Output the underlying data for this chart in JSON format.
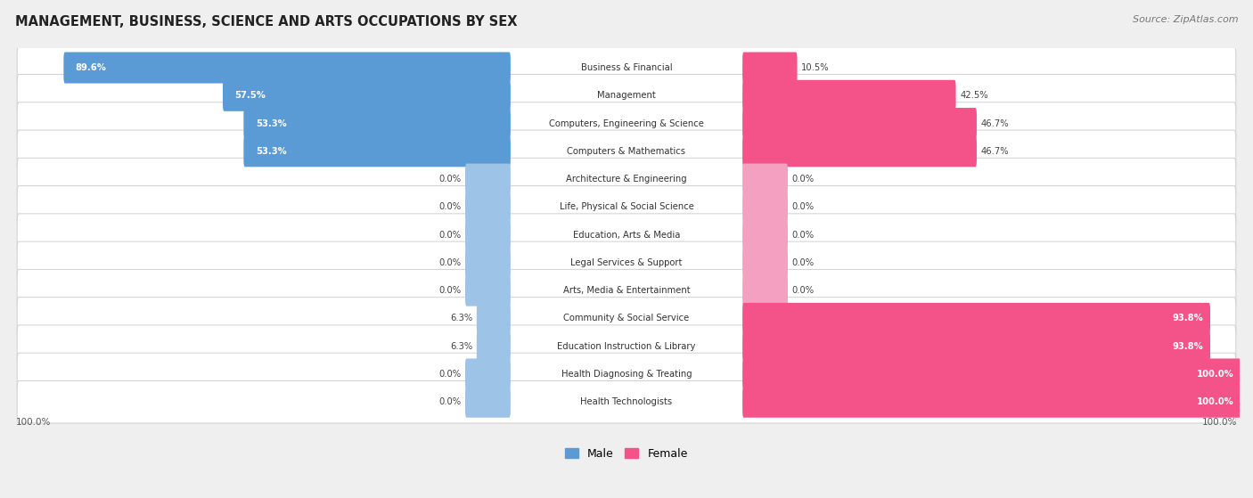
{
  "title": "MANAGEMENT, BUSINESS, SCIENCE AND ARTS OCCUPATIONS BY SEX",
  "source": "Source: ZipAtlas.com",
  "categories": [
    "Business & Financial",
    "Management",
    "Computers, Engineering & Science",
    "Computers & Mathematics",
    "Architecture & Engineering",
    "Life, Physical & Social Science",
    "Education, Arts & Media",
    "Legal Services & Support",
    "Arts, Media & Entertainment",
    "Community & Social Service",
    "Education Instruction & Library",
    "Health Diagnosing & Treating",
    "Health Technologists"
  ],
  "male_pct": [
    89.6,
    57.5,
    53.3,
    53.3,
    0.0,
    0.0,
    0.0,
    0.0,
    0.0,
    6.3,
    6.3,
    0.0,
    0.0
  ],
  "female_pct": [
    10.5,
    42.5,
    46.7,
    46.7,
    0.0,
    0.0,
    0.0,
    0.0,
    0.0,
    93.8,
    93.8,
    100.0,
    100.0
  ],
  "male_color_strong": "#5b9bd5",
  "male_color_light": "#9dc3e6",
  "female_color_strong": "#f4538a",
  "female_color_light": "#f4a0c0",
  "background_color": "#efefef",
  "legend_male": "Male",
  "legend_female": "Female",
  "bar_height": 0.62,
  "figsize": [
    14.06,
    5.59
  ],
  "dpi": 100,
  "xlim": 115,
  "label_zone": 22
}
